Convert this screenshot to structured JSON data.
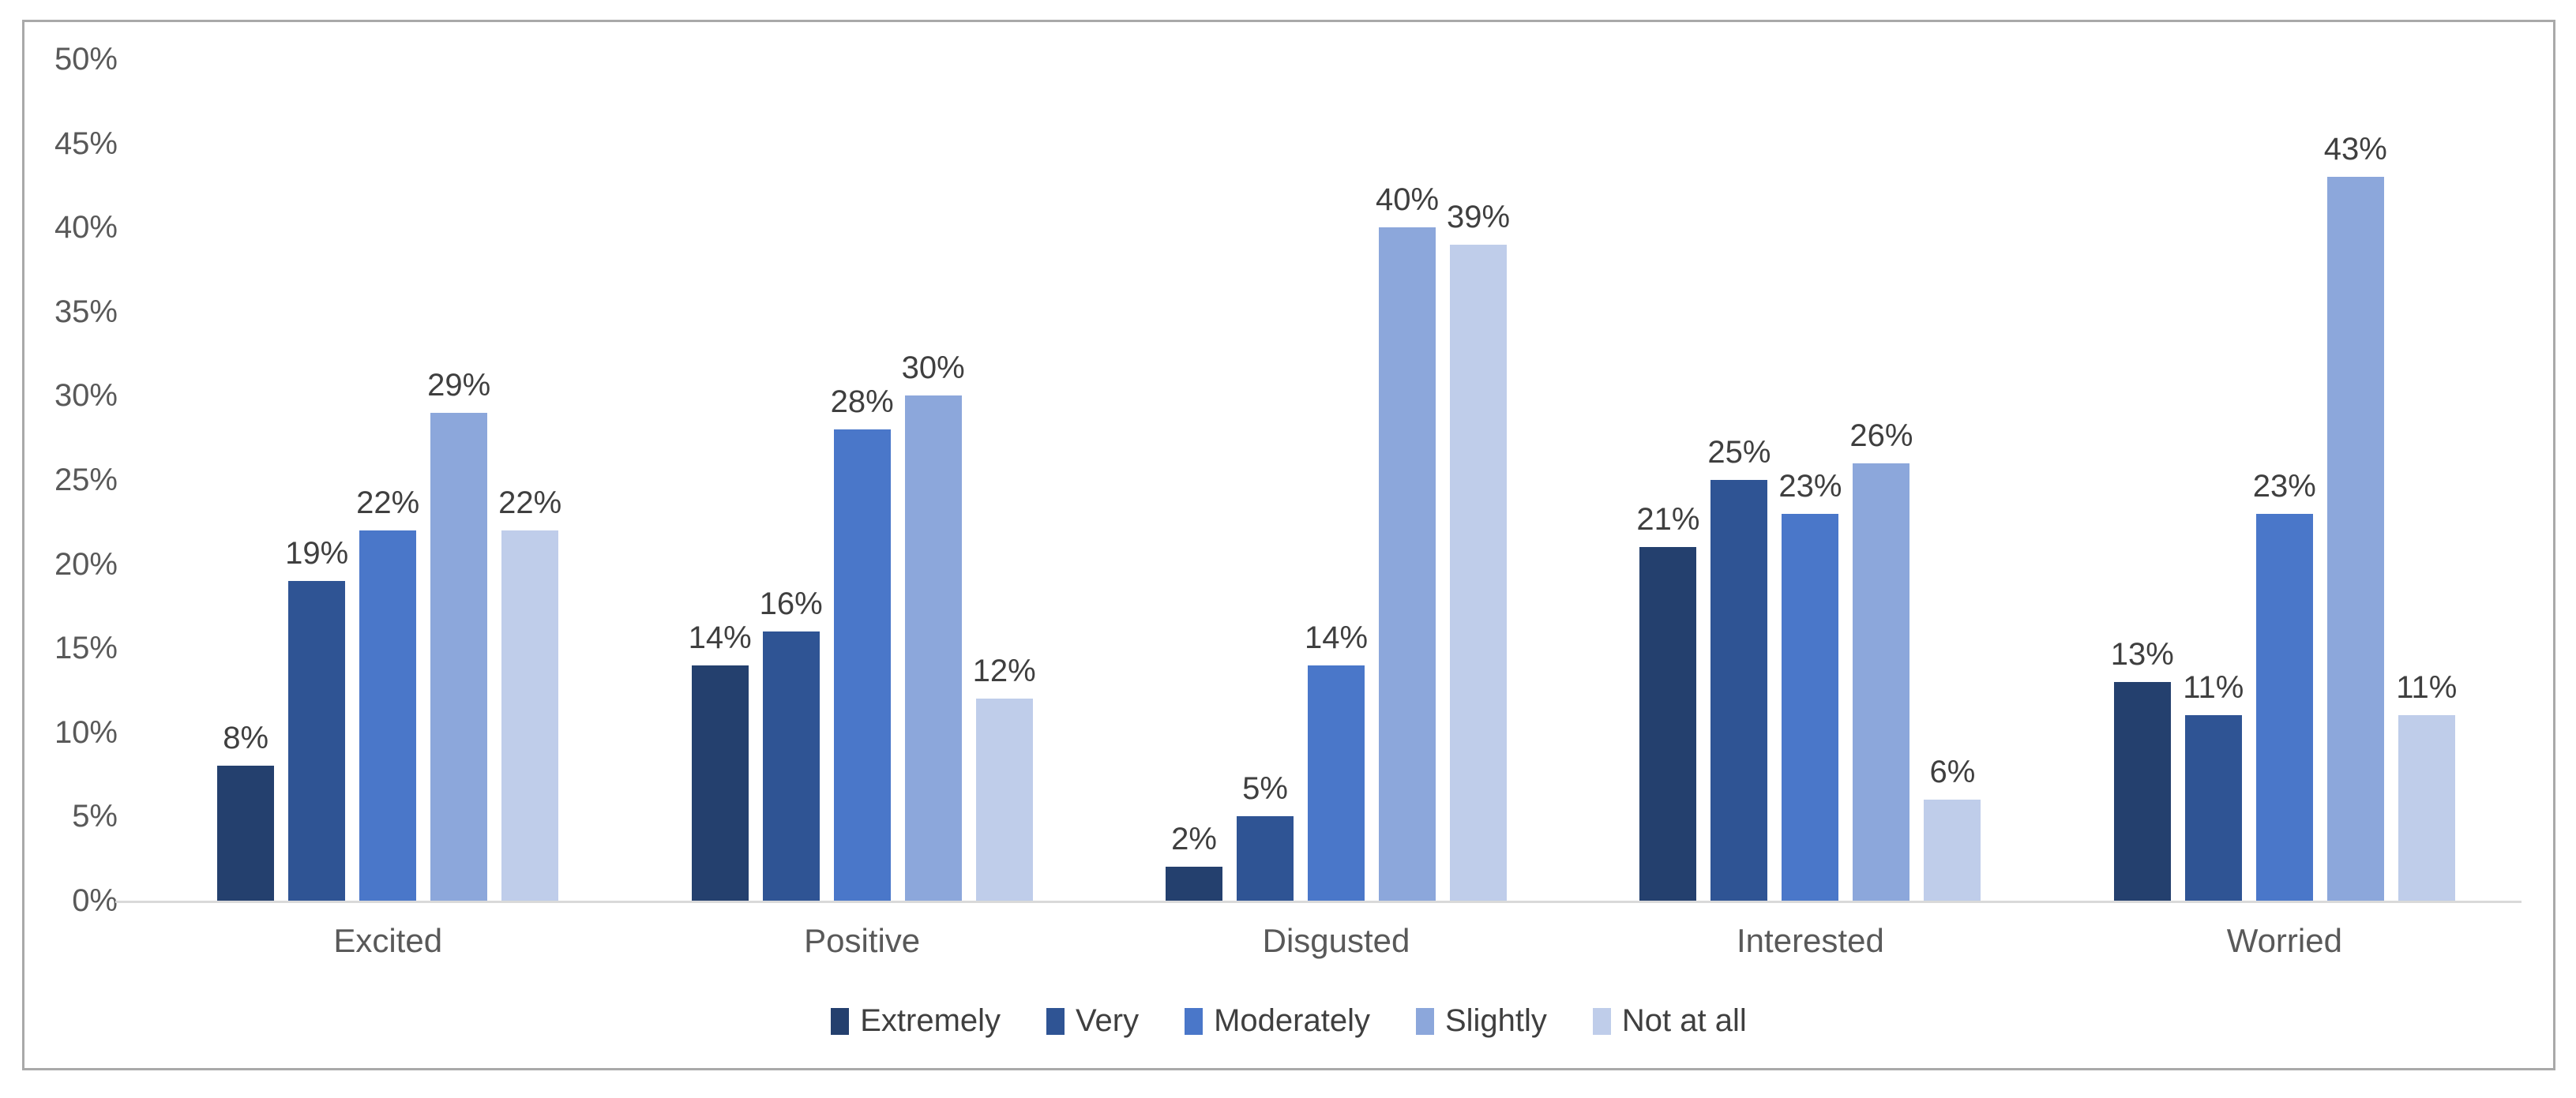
{
  "chart_data": {
    "type": "bar",
    "title": "",
    "categories": [
      "Excited",
      "Positive",
      "Disgusted",
      "Interested",
      "Worried"
    ],
    "series": [
      {
        "name": "Extremely",
        "color": "#24406E",
        "values": [
          8,
          14,
          2,
          21,
          13
        ]
      },
      {
        "name": "Very",
        "color": "#2F5494",
        "values": [
          19,
          16,
          5,
          25,
          11
        ]
      },
      {
        "name": "Moderately",
        "color": "#4A77C9",
        "values": [
          22,
          28,
          14,
          23,
          23
        ]
      },
      {
        "name": "Slightly",
        "color": "#8CA7DB",
        "values": [
          29,
          30,
          40,
          26,
          43
        ]
      },
      {
        "name": "Not at all",
        "color": "#BFCDEA",
        "values": [
          22,
          12,
          39,
          6,
          11
        ]
      }
    ],
    "data_label_suffix": "%",
    "y_axis": {
      "min": 0,
      "max": 50,
      "step": 5,
      "tick_labels": [
        "0%",
        "5%",
        "10%",
        "15%",
        "20%",
        "25%",
        "30%",
        "35%",
        "40%",
        "45%",
        "50%"
      ]
    },
    "xlabel": "",
    "ylabel": "",
    "grid": false,
    "legend_position": "bottom"
  },
  "colors": {
    "background": "#FFFFFF",
    "frame_border": "#A9A9A9",
    "axis_line": "#D9D9D9",
    "tick_text": "#595959",
    "category_text": "#595959",
    "data_label_text": "#3F3F3F",
    "legend_text": "#3F3F3F"
  }
}
